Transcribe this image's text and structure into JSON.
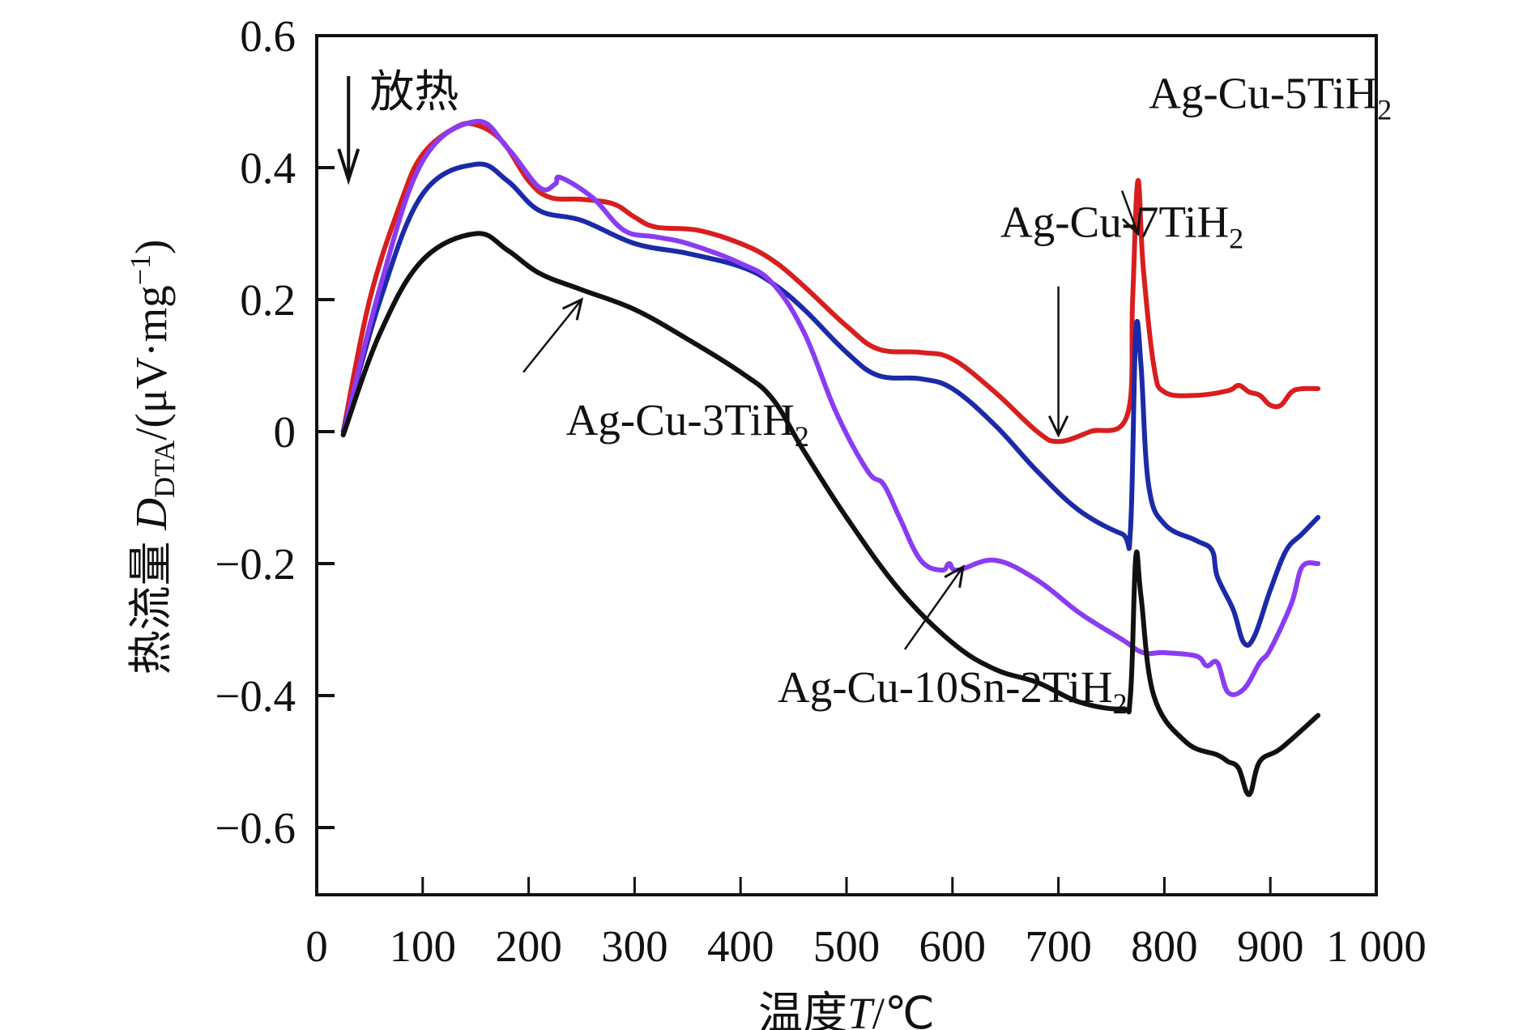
{
  "chart_data": {
    "type": "line",
    "title": "",
    "xlabel": "温度T/℃",
    "xlabel_parts": {
      "prefix": "温度",
      "var": "T",
      "unit": "/℃"
    },
    "ylabel": "热流量 D_DTA/(μV·mg⁻¹)",
    "ylabel_parts": {
      "prefix": "热流量 ",
      "var": "D",
      "sub": "DTA",
      "unit": "/(μV·mg",
      "sup": "−1",
      "close": ")"
    },
    "xlim": [
      0,
      1000
    ],
    "ylim": [
      -0.7,
      0.6
    ],
    "grid": false,
    "legend": "none (inline labels with arrows)",
    "x_ticks": [
      {
        "value": 0,
        "label": "0"
      },
      {
        "value": 100,
        "label": "100"
      },
      {
        "value": 200,
        "label": "200"
      },
      {
        "value": 300,
        "label": "300"
      },
      {
        "value": 400,
        "label": "400"
      },
      {
        "value": 500,
        "label": "500"
      },
      {
        "value": 600,
        "label": "600"
      },
      {
        "value": 700,
        "label": "700"
      },
      {
        "value": 800,
        "label": "800"
      },
      {
        "value": 900,
        "label": "900"
      },
      {
        "value": 1000,
        "label": "1 000"
      }
    ],
    "y_ticks": [
      {
        "value": 0.6,
        "label": "0.6"
      },
      {
        "value": 0.4,
        "label": "0.4"
      },
      {
        "value": 0.2,
        "label": "0.2"
      },
      {
        "value": 0,
        "label": "0"
      },
      {
        "value": -0.2,
        "label": "−0.2"
      },
      {
        "value": -0.4,
        "label": "−0.4"
      },
      {
        "value": -0.6,
        "label": "−0.6"
      }
    ],
    "exo_annotation": {
      "label": "放热",
      "direction": "down"
    },
    "series": [
      {
        "name": "Ag-Cu-7TiH2",
        "label_main": "Ag-Cu-7TiH",
        "label_sub": "2",
        "color": "#d81e1e",
        "x": [
          25,
          50,
          80,
          100,
          130,
          150,
          175,
          200,
          220,
          250,
          280,
          300,
          320,
          360,
          400,
          430,
          460,
          500,
          530,
          570,
          600,
          640,
          680,
          700,
          730,
          765,
          770,
          775,
          780,
          790,
          800,
          830,
          860,
          870,
          880,
          890,
          900,
          910,
          920,
          930,
          945
        ],
        "y": [
          0.0,
          0.2,
          0.35,
          0.42,
          0.46,
          0.465,
          0.44,
          0.38,
          0.355,
          0.352,
          0.345,
          0.325,
          0.31,
          0.305,
          0.285,
          0.26,
          0.22,
          0.16,
          0.125,
          0.12,
          0.11,
          0.06,
          0.0,
          -0.015,
          0.0,
          0.025,
          0.2,
          0.38,
          0.25,
          0.1,
          0.06,
          0.055,
          0.062,
          0.07,
          0.06,
          0.055,
          0.04,
          0.04,
          0.06,
          0.065,
          0.065
        ],
        "annotation": {
          "text_at": [
            760,
            0.295
          ],
          "arrow_from": [
            700,
            0.22
          ],
          "arrow_to": [
            700,
            -0.005
          ]
        }
      },
      {
        "name": "Ag-Cu-5TiH2",
        "label_main": "Ag-Cu-5TiH",
        "label_sub": "2",
        "color": "#1b2aa8",
        "x": [
          25,
          60,
          100,
          150,
          180,
          210,
          250,
          300,
          350,
          400,
          430,
          460,
          500,
          530,
          570,
          600,
          640,
          680,
          720,
          760,
          768,
          773,
          778,
          785,
          800,
          830,
          845,
          850,
          865,
          875,
          885,
          900,
          915,
          930,
          945
        ],
        "y": [
          0.0,
          0.2,
          0.36,
          0.405,
          0.38,
          0.335,
          0.32,
          0.285,
          0.27,
          0.25,
          0.225,
          0.185,
          0.12,
          0.085,
          0.08,
          0.065,
          0.01,
          -0.06,
          -0.12,
          -0.155,
          -0.15,
          0.15,
          0.1,
          -0.08,
          -0.14,
          -0.165,
          -0.18,
          -0.22,
          -0.27,
          -0.32,
          -0.31,
          -0.24,
          -0.18,
          -0.155,
          -0.13
        ],
        "annotation": {
          "text_at": [
            900,
            0.49
          ],
          "arrow_from": [
            760,
            0.365
          ],
          "arrow_to": [
            775,
            0.3
          ]
        }
      },
      {
        "name": "Ag-Cu-10Sn-2TiH2",
        "label_main": "Ag-Cu-10Sn-2TiH",
        "label_sub": "2",
        "color": "#8a3cf2",
        "x": [
          25,
          60,
          100,
          150,
          180,
          210,
          225,
          230,
          260,
          290,
          320,
          350,
          400,
          430,
          460,
          490,
          520,
          535,
          550,
          570,
          590,
          597,
          605,
          640,
          680,
          720,
          760,
          780,
          800,
          830,
          840,
          850,
          860,
          875,
          890,
          900,
          920,
          930,
          945
        ],
        "y": [
          -0.005,
          0.22,
          0.41,
          0.47,
          0.43,
          0.37,
          0.375,
          0.385,
          0.355,
          0.305,
          0.295,
          0.285,
          0.255,
          0.225,
          0.15,
          0.03,
          -0.06,
          -0.08,
          -0.13,
          -0.195,
          -0.21,
          -0.2,
          -0.21,
          -0.195,
          -0.225,
          -0.275,
          -0.315,
          -0.335,
          -0.335,
          -0.34,
          -0.355,
          -0.35,
          -0.395,
          -0.39,
          -0.35,
          -0.33,
          -0.26,
          -0.205,
          -0.2
        ],
        "annotation": {
          "text_at": [
            600,
            -0.41
          ],
          "arrow_from": [
            555,
            -0.33
          ],
          "arrow_to": [
            610,
            -0.205
          ]
        }
      },
      {
        "name": "Ag-Cu-3TiH2",
        "label_main": "Ag-Cu-3TiH",
        "label_sub": "2",
        "color": "#111111",
        "x": [
          25,
          60,
          100,
          150,
          180,
          210,
          250,
          300,
          350,
          400,
          430,
          460,
          500,
          550,
          600,
          640,
          680,
          720,
          760,
          768,
          773,
          778,
          790,
          820,
          850,
          860,
          870,
          880,
          890,
          910,
          945
        ],
        "y": [
          -0.005,
          0.15,
          0.26,
          0.3,
          0.275,
          0.24,
          0.215,
          0.185,
          0.14,
          0.09,
          0.05,
          -0.03,
          -0.13,
          -0.24,
          -0.32,
          -0.36,
          -0.38,
          -0.41,
          -0.42,
          -0.4,
          -0.19,
          -0.25,
          -0.4,
          -0.47,
          -0.49,
          -0.5,
          -0.51,
          -0.55,
          -0.5,
          -0.48,
          -0.43
        ],
        "annotation": {
          "text_at": [
            350,
            -0.005
          ],
          "arrow_from": [
            195,
            0.09
          ],
          "arrow_to": [
            250,
            0.2
          ]
        }
      }
    ]
  }
}
